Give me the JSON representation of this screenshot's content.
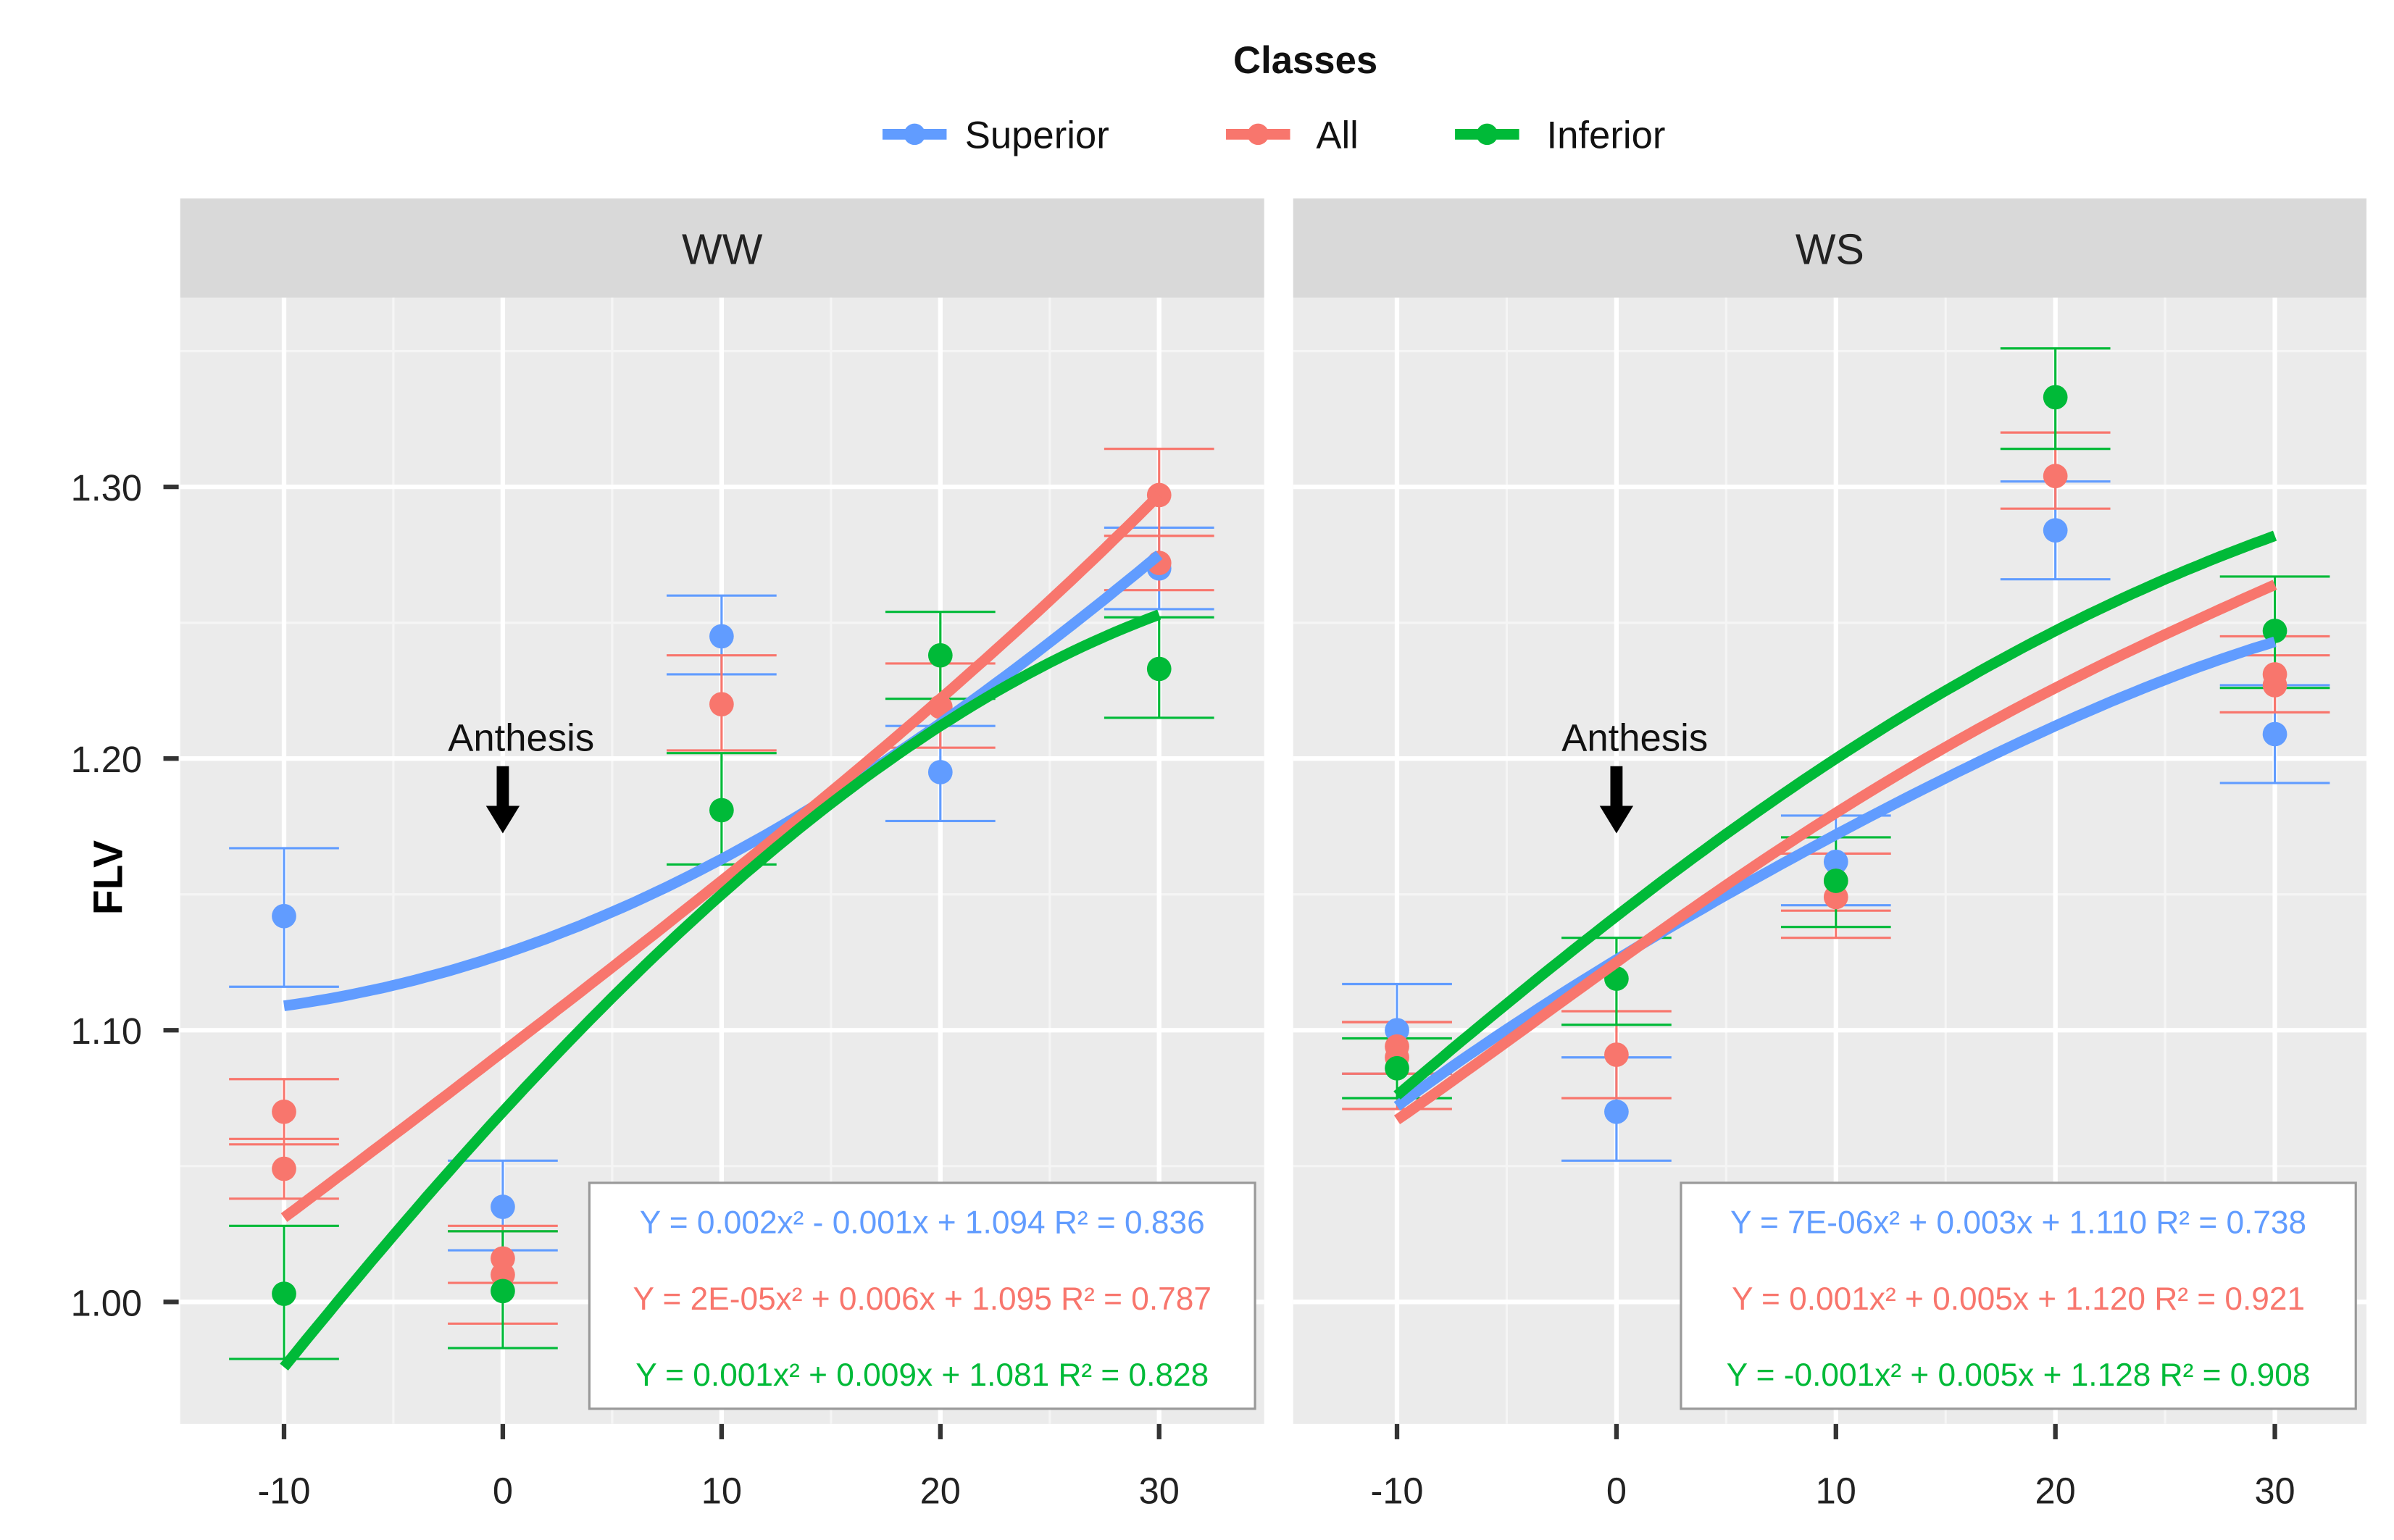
{
  "chart_data": {
    "type": "scatter",
    "legend": {
      "title": "Classes",
      "placement": "top-center",
      "entries": [
        "Superior",
        "All",
        "Inferior"
      ]
    },
    "colors": {
      "Superior": "#619CFF",
      "All": "#F8766D",
      "Inferior": "#00BA38"
    },
    "ylabel": "FLV",
    "xlabel": "",
    "x_ticks": [
      "-10",
      "0",
      "10",
      "20",
      "30"
    ],
    "x_tick_values": [
      -10,
      0,
      10,
      20,
      30
    ],
    "y_ticks": [
      "1.00",
      "1.10",
      "1.20",
      "1.30"
    ],
    "y_tick_values": [
      1.0,
      1.1,
      1.2,
      1.3
    ],
    "xlim": [
      -14.75,
      34.8
    ],
    "ylim": [
      0.955,
      1.37
    ],
    "grid": true,
    "annotation": "Anthesis",
    "annotation_x": 0,
    "panels": [
      {
        "title": "WW",
        "points": {
          "Superior": [
            [
              -10,
              1.142,
              1.116,
              1.167
            ],
            [
              0,
              1.035,
              1.019,
              1.052
            ],
            [
              10,
              1.245,
              1.231,
              1.26
            ],
            [
              20,
              1.195,
              1.177,
              1.212
            ],
            [
              30,
              1.27,
              1.255,
              1.285
            ]
          ],
          "All": [
            [
              -10,
              1.07,
              1.058,
              1.082
            ],
            [
              -10,
              1.049,
              1.038,
              1.06
            ],
            [
              0,
              1.016,
              1.007,
              1.028
            ],
            [
              0,
              1.01,
              0.992,
              1.026
            ],
            [
              10,
              1.22,
              1.203,
              1.238
            ],
            [
              20,
              1.219,
              1.204,
              1.235
            ],
            [
              30,
              1.297,
              1.282,
              1.314
            ],
            [
              30,
              1.272,
              1.262,
              1.282
            ]
          ],
          "Inferior": [
            [
              -10,
              1.003,
              0.979,
              1.028
            ],
            [
              0,
              1.004,
              0.983,
              1.026
            ],
            [
              10,
              1.181,
              1.161,
              1.202
            ],
            [
              20,
              1.238,
              1.222,
              1.254
            ],
            [
              30,
              1.233,
              1.215,
              1.252
            ]
          ]
        },
        "curves": {
          "Superior": [
            [
              -10,
              1.109
            ],
            [
              0,
              1.128
            ],
            [
              10,
              1.163
            ],
            [
              20,
              1.213
            ],
            [
              30,
              1.275
            ]
          ],
          "All": [
            [
              -10,
              1.031
            ],
            [
              0,
              1.092
            ],
            [
              10,
              1.155
            ],
            [
              20,
              1.222
            ],
            [
              30,
              1.297
            ]
          ],
          "Inferior": [
            [
              -10,
              0.976
            ],
            [
              0,
              1.07
            ],
            [
              10,
              1.15
            ],
            [
              20,
              1.212
            ],
            [
              30,
              1.253
            ]
          ]
        },
        "equations": [
          {
            "class": "Superior",
            "text": "Y = 0.002x² - 0.001x + 1.094  R² = 0.836"
          },
          {
            "class": "All",
            "text": "Y = 2E-05x² + 0.006x + 1.095 R² = 0.787"
          },
          {
            "class": "Inferior",
            "text": "Y = 0.001x² + 0.009x + 1.081  R² = 0.828"
          }
        ]
      },
      {
        "title": "WS",
        "points": {
          "Superior": [
            [
              -10,
              1.1,
              1.084,
              1.117
            ],
            [
              0,
              1.07,
              1.052,
              1.09
            ],
            [
              10,
              1.162,
              1.146,
              1.179
            ],
            [
              20,
              1.284,
              1.266,
              1.302
            ],
            [
              30,
              1.209,
              1.191,
              1.227
            ]
          ],
          "All": [
            [
              -10,
              1.094,
              1.084,
              1.103
            ],
            [
              -10,
              1.09,
              1.071,
              1.103
            ],
            [
              0,
              1.091,
              1.075,
              1.107
            ],
            [
              10,
              1.155,
              1.144,
              1.165
            ],
            [
              10,
              1.149,
              1.134,
              1.165
            ],
            [
              20,
              1.304,
              1.292,
              1.32
            ],
            [
              30,
              1.231,
              1.217,
              1.245
            ],
            [
              30,
              1.227,
              1.217,
              1.238
            ]
          ],
          "Inferior": [
            [
              -10,
              1.086,
              1.075,
              1.097
            ],
            [
              0,
              1.119,
              1.102,
              1.134
            ],
            [
              10,
              1.155,
              1.138,
              1.171
            ],
            [
              20,
              1.333,
              1.314,
              1.351
            ],
            [
              30,
              1.247,
              1.226,
              1.267
            ]
          ]
        },
        "curves": {
          "Superior": [
            [
              -10,
              1.072
            ],
            [
              0,
              1.126
            ],
            [
              10,
              1.172
            ],
            [
              20,
              1.212
            ],
            [
              30,
              1.243
            ]
          ],
          "All": [
            [
              -10,
              1.067
            ],
            [
              0,
              1.125
            ],
            [
              10,
              1.18
            ],
            [
              20,
              1.226
            ],
            [
              30,
              1.264
            ]
          ],
          "Inferior": [
            [
              -10,
              1.076
            ],
            [
              0,
              1.142
            ],
            [
              10,
              1.2
            ],
            [
              20,
              1.247
            ],
            [
              30,
              1.282
            ]
          ]
        },
        "equations": [
          {
            "class": "Superior",
            "text": "Y =  7E-06x² + 0.003x + 1.110  R² = 0.738"
          },
          {
            "class": "All",
            "text": "Y =  0.001x² + 0.005x + 1.120  R² = 0.921"
          },
          {
            "class": "Inferior",
            "text": "Y = -0.001x² + 0.005x + 1.128 R² = 0.908"
          }
        ]
      }
    ]
  }
}
